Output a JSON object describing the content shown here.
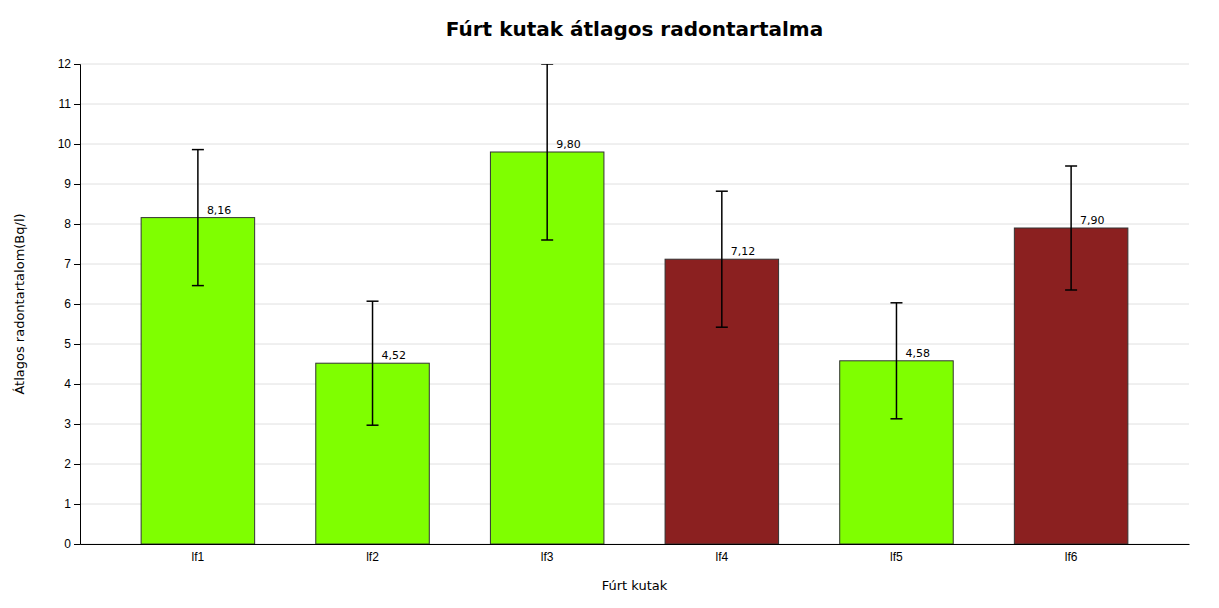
{
  "chart_data": {
    "type": "bar",
    "title": "Fúrt kutak átlagos radontartalma",
    "xlabel": "Fúrt kutak",
    "ylabel": "Átlagos radontartalom(Bq/l)",
    "categories": [
      "lf1",
      "lf2",
      "lf3",
      "lf4",
      "lf5",
      "lf6"
    ],
    "values": [
      8.16,
      4.52,
      9.8,
      7.12,
      4.58,
      7.9
    ],
    "value_labels": [
      "8,16",
      "4,52",
      "9,80",
      "7,12",
      "4,58",
      "7,90"
    ],
    "errors": [
      1.7,
      1.55,
      2.2,
      1.7,
      1.45,
      1.55
    ],
    "colors": [
      "#7FFF00",
      "#7FFF00",
      "#7FFF00",
      "#8B2020",
      "#7FFF00",
      "#8B2020"
    ],
    "ylim": [
      0,
      12
    ],
    "yticks": [
      0,
      1,
      2,
      3,
      4,
      5,
      6,
      7,
      8,
      9,
      10,
      11,
      12
    ],
    "grid": true,
    "data_labels": true
  }
}
